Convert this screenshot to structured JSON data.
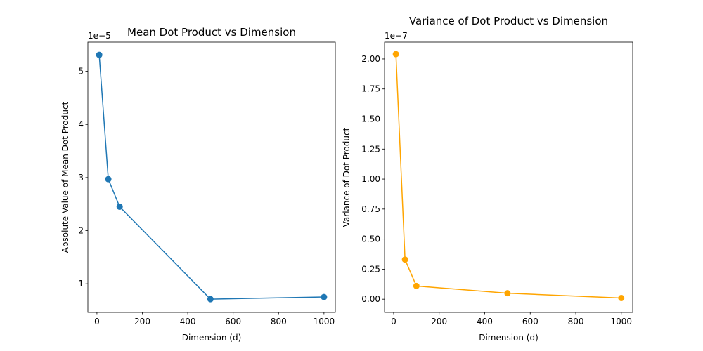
{
  "chart_data": [
    {
      "type": "line",
      "title": "Mean Dot Product vs Dimension",
      "xlabel": "Dimension (d)",
      "ylabel": "Absolute Value of Mean Dot Product",
      "offset_text": "1e−5",
      "color": "#1f77b4",
      "marker": "circle",
      "grid": false,
      "x": [
        10,
        50,
        100,
        500,
        1000
      ],
      "y": [
        5.31e-05,
        2.97e-05,
        2.45e-05,
        7.1e-06,
        7.5e-06
      ],
      "xlim": [
        -40,
        1050
      ],
      "ylim": [
        4.6e-06,
        5.55e-05
      ],
      "xticks": [
        0,
        200,
        400,
        600,
        800,
        1000
      ],
      "xtick_labels": [
        "0",
        "200",
        "400",
        "600",
        "800",
        "1000"
      ],
      "yticks": [
        1e-05,
        2e-05,
        3e-05,
        4e-05,
        5e-05
      ],
      "ytick_labels": [
        "1",
        "2",
        "3",
        "4",
        "5"
      ]
    },
    {
      "type": "line",
      "title": "Variance of Dot Product vs Dimension",
      "xlabel": "Dimension (d)",
      "ylabel": "Variance of Dot Product",
      "offset_text": "1e−7",
      "color": "#ffa500",
      "marker": "circle",
      "grid": false,
      "x": [
        10,
        50,
        100,
        500,
        1000
      ],
      "y": [
        2.04e-07,
        3.3e-08,
        1.1e-08,
        5e-09,
        1e-09
      ],
      "xlim": [
        -40,
        1050
      ],
      "ylim": [
        -1.1e-08,
        2.14e-07
      ],
      "xticks": [
        0,
        200,
        400,
        600,
        800,
        1000
      ],
      "xtick_labels": [
        "0",
        "200",
        "400",
        "600",
        "800",
        "1000"
      ],
      "yticks": [
        0,
        2.5e-08,
        5e-08,
        7.5e-08,
        1e-07,
        1.25e-07,
        1.5e-07,
        1.75e-07,
        2e-07
      ],
      "ytick_labels": [
        "0.00",
        "0.25",
        "0.50",
        "0.75",
        "1.00",
        "1.25",
        "1.50",
        "1.75",
        "2.00"
      ]
    }
  ]
}
